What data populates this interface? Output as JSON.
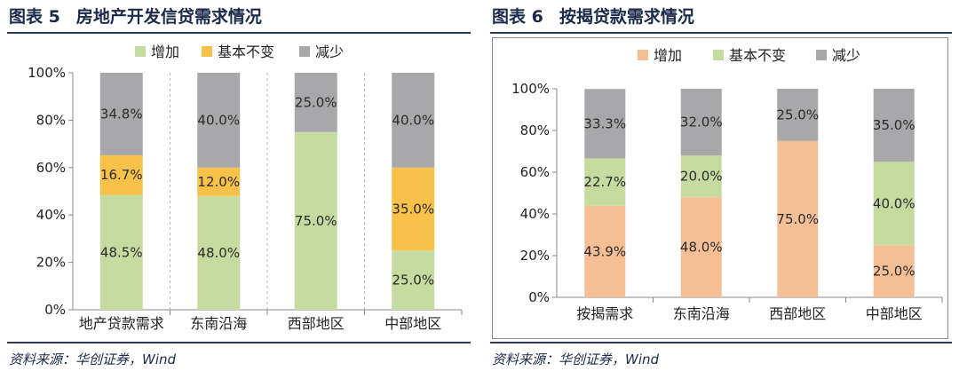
{
  "figures": [
    {
      "title_prefix": "图表 5",
      "title_text": "房地产开发信贷需求情况",
      "source": "资料来源：华创证券，Wind"
    },
    {
      "title_prefix": "图表 6",
      "title_text": "按揭贷款需求情况",
      "source": "资料来源：华创证券，Wind"
    }
  ],
  "chart_data": [
    {
      "type": "bar",
      "stacked": true,
      "percent": true,
      "categories": [
        "地产贷款需求",
        "东南沿海",
        "西部地区",
        "中部地区"
      ],
      "series": [
        {
          "name": "增加",
          "color": "#c6dba0",
          "values": [
            48.5,
            48.0,
            75.0,
            25.0
          ]
        },
        {
          "name": "基本不变",
          "color": "#f7c14a",
          "values": [
            16.7,
            12.0,
            0.0,
            35.0
          ]
        },
        {
          "name": "减少",
          "color": "#a8a8ab",
          "values": [
            34.8,
            40.0,
            25.0,
            40.0
          ]
        }
      ],
      "ylim": [
        0,
        100
      ],
      "yticks": [
        "0%",
        "20%",
        "40%",
        "60%",
        "80%",
        "100%"
      ],
      "grid": "vertical dashed",
      "legend": "top"
    },
    {
      "type": "bar",
      "stacked": true,
      "percent": true,
      "categories": [
        "按揭需求",
        "东南沿海",
        "西部地区",
        "中部地区"
      ],
      "series": [
        {
          "name": "增加",
          "color": "#f5bf95",
          "values": [
            43.9,
            48.0,
            75.0,
            25.0
          ]
        },
        {
          "name": "基本不变",
          "color": "#c6dba0",
          "values": [
            22.7,
            20.0,
            0.0,
            40.0
          ]
        },
        {
          "name": "减少",
          "color": "#a8a8ab",
          "values": [
            33.3,
            32.0,
            25.0,
            35.0
          ]
        }
      ],
      "ylim": [
        0,
        100
      ],
      "yticks": [
        "0%",
        "20%",
        "40%",
        "60%",
        "80%",
        "100%"
      ],
      "grid": "none",
      "legend": "top"
    }
  ]
}
